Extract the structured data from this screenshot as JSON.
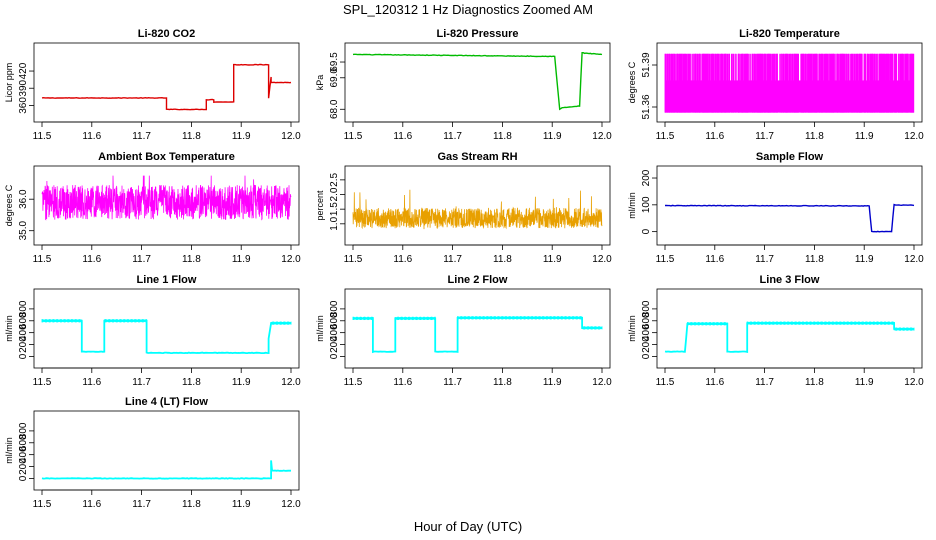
{
  "figure": {
    "title": "SPL_120312  1 Hz Diagnostics Zoomed AM",
    "xlabel": "Hour of Day (UTC)"
  },
  "chart_data": [
    {
      "type": "line",
      "title": "Li-820 CO2",
      "xlabel": "",
      "ylabel": "Licor ppm",
      "xlim": [
        11.5,
        12.0
      ],
      "ylim": [
        345,
        455
      ],
      "yticks": [
        360,
        390,
        420
      ],
      "xticks": [
        11.5,
        11.6,
        11.7,
        11.8,
        11.9,
        12.0
      ],
      "color": "#dd0000",
      "series": [
        {
          "x": [
            11.5,
            11.75,
            11.75,
            11.83,
            11.83,
            11.845,
            11.845,
            11.885,
            11.885,
            11.955,
            11.955,
            11.96,
            11.96,
            12.0
          ],
          "y": [
            373,
            373,
            353,
            353,
            370,
            370,
            366,
            366,
            431,
            431,
            373,
            410,
            400,
            400
          ]
        }
      ]
    },
    {
      "type": "line",
      "title": "Li-820 Pressure",
      "xlabel": "",
      "ylabel": "kPa",
      "xlim": [
        11.5,
        12.0
      ],
      "ylim": [
        67.85,
        69.85
      ],
      "yticks": [
        68.0,
        69.0,
        69.5
      ],
      "xticks": [
        11.5,
        11.6,
        11.7,
        11.8,
        11.9,
        12.0
      ],
      "color": "#00bb00",
      "series": [
        {
          "x": [
            11.5,
            11.7,
            11.82,
            11.905,
            11.915,
            11.92,
            11.955,
            11.96,
            11.965,
            12.0
          ],
          "y": [
            69.74,
            69.71,
            69.69,
            69.68,
            68.0,
            68.05,
            68.1,
            69.8,
            69.78,
            69.74
          ]
        }
      ]
    },
    {
      "type": "line",
      "title": "Li-820 Temperature",
      "xlabel": "",
      "ylabel": "degrees C",
      "xlim": [
        11.5,
        12.0
      ],
      "ylim": [
        51.355,
        51.4
      ],
      "yticks": [
        51.36,
        51.39
      ],
      "xticks": [
        11.5,
        11.6,
        11.7,
        11.8,
        11.9,
        12.0
      ],
      "color": "#ff00ff",
      "band": {
        "low": 51.356,
        "high": 51.398,
        "core_low": 51.356,
        "core_high": 51.379
      }
    },
    {
      "type": "line",
      "title": "Ambient Box Temperature",
      "xlabel": "",
      "ylabel": "degrees C",
      "xlim": [
        11.5,
        12.0
      ],
      "ylim": [
        34.8,
        36.8
      ],
      "yticks": [
        35.0,
        36.0
      ],
      "xticks": [
        11.5,
        11.6,
        11.7,
        11.8,
        11.9,
        12.0
      ],
      "color": "#ff00ff",
      "band": {
        "mean": 35.9,
        "spread": 0.55
      }
    },
    {
      "type": "line",
      "title": "Gas Stream RH",
      "xlabel": "",
      "ylabel": "percent",
      "xlim": [
        11.5,
        12.0
      ],
      "ylim": [
        0.55,
        2.7
      ],
      "yticks": [
        1.0,
        1.5,
        2.0,
        2.5
      ],
      "xticks": [
        11.5,
        11.6,
        11.7,
        11.8,
        11.9,
        12.0
      ],
      "color": "#e8a000",
      "band": {
        "mean": 1.2,
        "spread": 0.35
      }
    },
    {
      "type": "line",
      "title": "Sample Flow",
      "xlabel": "",
      "ylabel": "ml/min",
      "xlim": [
        11.5,
        12.0
      ],
      "ylim": [
        -20,
        215
      ],
      "yticks": [
        0,
        100,
        200
      ],
      "xticks": [
        11.5,
        11.6,
        11.7,
        11.8,
        11.9,
        12.0
      ],
      "color": "#0000cc",
      "series": [
        {
          "x": [
            11.5,
            11.91,
            11.915,
            11.955,
            11.96,
            12.0
          ],
          "y": [
            97,
            96,
            0,
            0,
            100,
            98
          ]
        }
      ]
    },
    {
      "type": "line",
      "title": "Line 1 Flow",
      "xlabel": "",
      "ylabel": "ml/min",
      "xlim": [
        11.5,
        12.0
      ],
      "ylim": [
        -60,
        1000
      ],
      "yticks": [
        0,
        200,
        400,
        600,
        800
      ],
      "xticks": [
        11.5,
        11.6,
        11.7,
        11.8,
        11.9,
        12.0
      ],
      "color": "#00ffff",
      "series": [
        {
          "x": [
            11.5,
            11.58,
            11.58,
            11.625,
            11.625,
            11.71,
            11.71,
            11.955,
            11.955,
            11.96,
            12.0
          ],
          "y": [
            600,
            600,
            80,
            80,
            600,
            600,
            60,
            60,
            300,
            560,
            560
          ]
        }
      ]
    },
    {
      "type": "line",
      "title": "Line 2 Flow",
      "xlabel": "",
      "ylabel": "ml/min",
      "xlim": [
        11.5,
        12.0
      ],
      "ylim": [
        -60,
        1000
      ],
      "yticks": [
        0,
        200,
        400,
        600,
        800
      ],
      "xticks": [
        11.5,
        11.6,
        11.7,
        11.8,
        11.9,
        12.0
      ],
      "color": "#00ffff",
      "series": [
        {
          "x": [
            11.5,
            11.54,
            11.54,
            11.585,
            11.585,
            11.665,
            11.665,
            11.71,
            11.71,
            11.96,
            11.96,
            12.0
          ],
          "y": [
            640,
            640,
            80,
            80,
            640,
            640,
            80,
            80,
            650,
            650,
            480,
            480
          ]
        }
      ]
    },
    {
      "type": "line",
      "title": "Line 3 Flow",
      "xlabel": "",
      "ylabel": "ml/min",
      "xlim": [
        11.5,
        12.0
      ],
      "ylim": [
        -60,
        1000
      ],
      "yticks": [
        0,
        200,
        400,
        600,
        800
      ],
      "xticks": [
        11.5,
        11.6,
        11.7,
        11.8,
        11.9,
        12.0
      ],
      "color": "#00ffff",
      "series": [
        {
          "x": [
            11.5,
            11.54,
            11.545,
            11.625,
            11.625,
            11.665,
            11.665,
            11.96,
            11.96,
            12.0
          ],
          "y": [
            80,
            80,
            550,
            550,
            80,
            80,
            560,
            560,
            460,
            460
          ]
        }
      ]
    },
    {
      "type": "line",
      "title": "Line 4 (LT) Flow",
      "xlabel": "",
      "ylabel": "ml/min",
      "xlim": [
        11.5,
        12.0
      ],
      "ylim": [
        -60,
        1000
      ],
      "yticks": [
        0,
        200,
        400,
        600,
        800
      ],
      "xticks": [
        11.5,
        11.6,
        11.7,
        11.8,
        11.9,
        12.0
      ],
      "color": "#00ffff",
      "series": [
        {
          "x": [
            11.5,
            11.96,
            11.96,
            11.962,
            11.965,
            12.0
          ],
          "y": [
            0,
            0,
            300,
            130,
            130,
            130
          ]
        }
      ]
    }
  ]
}
